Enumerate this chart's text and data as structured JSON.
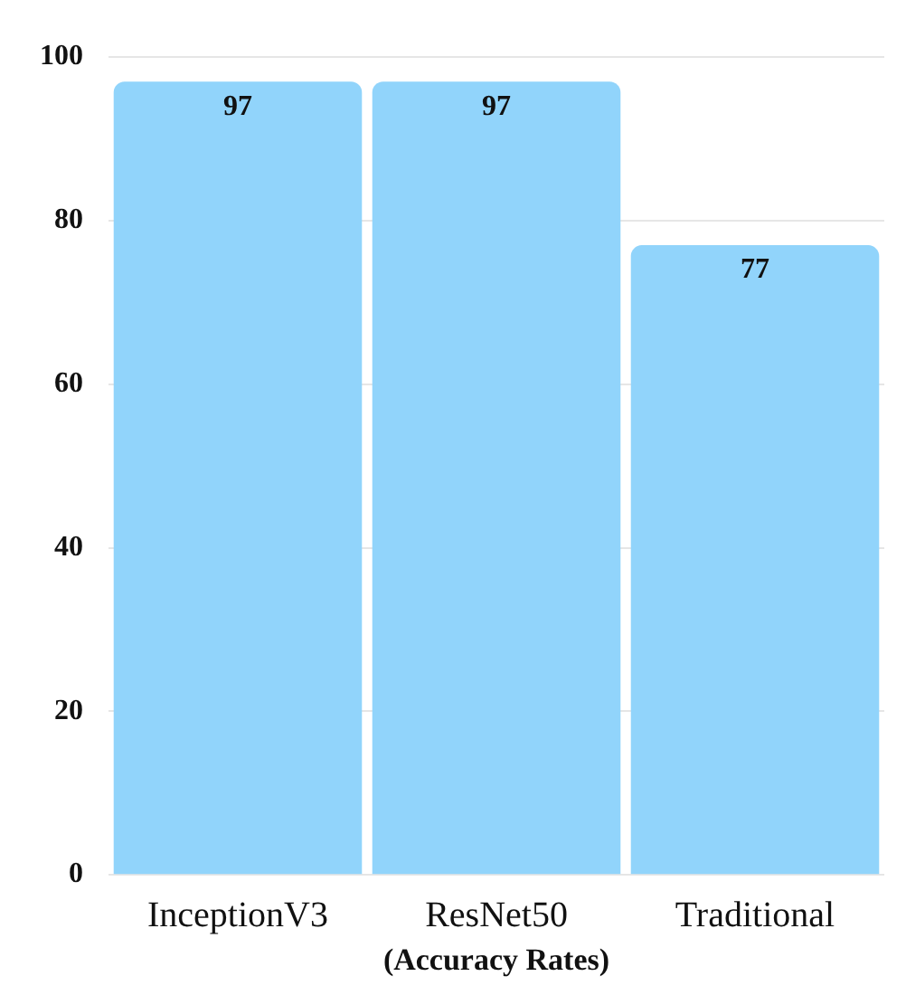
{
  "chart_data": {
    "type": "bar",
    "xlabel": "(Accuracy Rates)",
    "categories": [
      "InceptionV3",
      "ResNet50",
      "Traditional"
    ],
    "values": [
      97,
      97,
      77
    ],
    "color": "#91d4fb",
    "ylim": [
      0,
      100
    ],
    "yticks": [
      0,
      20,
      40,
      60,
      80,
      100
    ],
    "grid": "y",
    "data_labels": true,
    "legend": false
  }
}
